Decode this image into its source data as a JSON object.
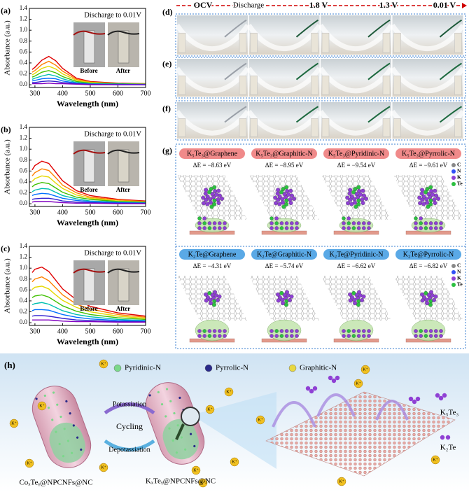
{
  "chart_data": [
    {
      "type": "line",
      "panel_label": "(a)",
      "annotation": "Discharge to 0.01V",
      "inset_labels": [
        "Before",
        "After"
      ],
      "xlabel": "Wavelength (nm)",
      "ylabel": "Absorbance (a.u.)",
      "x": [
        290,
        300,
        325,
        350,
        375,
        400,
        450,
        500,
        600,
        700
      ],
      "xlim": [
        280,
        700
      ],
      "ylim": [
        -0.05,
        1.4
      ],
      "xticks": [
        300,
        400,
        500,
        600,
        700
      ],
      "yticks": [
        {
          "value": 0,
          "label": "0.0"
        },
        {
          "value": 0.2,
          "label": "0.2"
        },
        {
          "value": 0.4,
          "label": "0.4"
        },
        {
          "value": 0.6,
          "label": "0.6"
        },
        {
          "value": 0.8,
          "label": "0.8"
        },
        {
          "value": 1,
          "label": "1.0"
        },
        {
          "value": 1.2,
          "label": "1.2"
        },
        {
          "value": 1.4,
          "label": "1.4"
        }
      ],
      "series": [
        {
          "color": "#e00000",
          "values": [
            0.28,
            0.32,
            0.45,
            0.52,
            0.44,
            0.3,
            0.12,
            0.06,
            0.03,
            0.02
          ]
        },
        {
          "color": "#ff8000",
          "values": [
            0.23,
            0.26,
            0.37,
            0.43,
            0.36,
            0.25,
            0.1,
            0.05,
            0.02,
            0.02
          ]
        },
        {
          "color": "#e6d800",
          "values": [
            0.18,
            0.21,
            0.3,
            0.34,
            0.29,
            0.2,
            0.08,
            0.04,
            0.02,
            0.01
          ]
        },
        {
          "color": "#40c000",
          "values": [
            0.14,
            0.16,
            0.23,
            0.26,
            0.22,
            0.15,
            0.06,
            0.03,
            0.02,
            0.01
          ]
        },
        {
          "color": "#00c0b0",
          "values": [
            0.1,
            0.12,
            0.16,
            0.19,
            0.16,
            0.11,
            0.04,
            0.02,
            0.01,
            0.01
          ]
        },
        {
          "color": "#0070ff",
          "values": [
            0.07,
            0.08,
            0.11,
            0.12,
            0.11,
            0.07,
            0.03,
            0.01,
            0.01,
            0.0
          ]
        },
        {
          "color": "#3020d0",
          "values": [
            0.04,
            0.04,
            0.06,
            0.07,
            0.06,
            0.04,
            0.02,
            0.01,
            0.0,
            0.0
          ]
        },
        {
          "color": "#8000c0",
          "values": [
            0.02,
            0.02,
            0.02,
            0.03,
            0.02,
            0.02,
            0.01,
            0.0,
            0.0,
            0.0
          ]
        }
      ]
    },
    {
      "type": "line",
      "panel_label": "(b)",
      "annotation": "Discharge to 0.01V",
      "inset_labels": [
        "Before",
        "After"
      ],
      "xlabel": "Wavelength (nm)",
      "ylabel": "Absorbance (a.u.)",
      "x": [
        290,
        300,
        325,
        350,
        375,
        400,
        450,
        500,
        600,
        700
      ],
      "xlim": [
        280,
        700
      ],
      "ylim": [
        -0.05,
        1.4
      ],
      "xticks": [
        300,
        400,
        500,
        600,
        700
      ],
      "yticks": [
        {
          "value": 0,
          "label": "0.0"
        },
        {
          "value": 0.2,
          "label": "0.2"
        },
        {
          "value": 0.4,
          "label": "0.4"
        },
        {
          "value": 0.6,
          "label": "0.6"
        },
        {
          "value": 0.8,
          "label": "0.8"
        },
        {
          "value": 1,
          "label": "1.0"
        },
        {
          "value": 1.2,
          "label": "1.2"
        },
        {
          "value": 1.4,
          "label": "1.4"
        }
      ],
      "series": [
        {
          "color": "#e00000",
          "values": [
            0.62,
            0.7,
            0.78,
            0.74,
            0.58,
            0.42,
            0.24,
            0.15,
            0.08,
            0.05
          ]
        },
        {
          "color": "#ff8000",
          "values": [
            0.51,
            0.57,
            0.64,
            0.61,
            0.48,
            0.34,
            0.2,
            0.12,
            0.07,
            0.04
          ]
        },
        {
          "color": "#e6d800",
          "values": [
            0.41,
            0.46,
            0.51,
            0.49,
            0.38,
            0.28,
            0.16,
            0.1,
            0.05,
            0.03
          ]
        },
        {
          "color": "#40c000",
          "values": [
            0.31,
            0.35,
            0.39,
            0.37,
            0.29,
            0.21,
            0.12,
            0.08,
            0.04,
            0.03
          ]
        },
        {
          "color": "#00c0b0",
          "values": [
            0.22,
            0.25,
            0.28,
            0.27,
            0.21,
            0.15,
            0.09,
            0.05,
            0.03,
            0.02
          ]
        },
        {
          "color": "#0070ff",
          "values": [
            0.15,
            0.17,
            0.19,
            0.18,
            0.14,
            0.1,
            0.06,
            0.04,
            0.02,
            0.01
          ]
        },
        {
          "color": "#3020d0",
          "values": [
            0.08,
            0.09,
            0.1,
            0.1,
            0.08,
            0.05,
            0.03,
            0.02,
            0.01,
            0.01
          ]
        },
        {
          "color": "#8000c0",
          "values": [
            0.03,
            0.04,
            0.04,
            0.04,
            0.03,
            0.02,
            0.01,
            0.01,
            0.0,
            0.0
          ]
        }
      ]
    },
    {
      "type": "line",
      "panel_label": "(c)",
      "annotation": "Discharge to 0.01V",
      "inset_labels": [
        "Before",
        "After"
      ],
      "xlabel": "Wavelength (nm)",
      "ylabel": "Absorbance (a.u.)",
      "x": [
        290,
        300,
        325,
        350,
        375,
        400,
        450,
        500,
        600,
        700
      ],
      "xlim": [
        280,
        700
      ],
      "ylim": [
        -0.05,
        1.4
      ],
      "xticks": [
        300,
        400,
        500,
        600,
        700
      ],
      "yticks": [
        {
          "value": 0,
          "label": "0.0"
        },
        {
          "value": 0.2,
          "label": "0.2"
        },
        {
          "value": 0.4,
          "label": "0.4"
        },
        {
          "value": 0.6,
          "label": "0.6"
        },
        {
          "value": 0.8,
          "label": "0.8"
        },
        {
          "value": 1,
          "label": "1.0"
        },
        {
          "value": 1.2,
          "label": "1.2"
        },
        {
          "value": 1.4,
          "label": "1.4"
        }
      ],
      "series": [
        {
          "color": "#e00000",
          "values": [
            0.92,
            0.98,
            1.02,
            0.94,
            0.78,
            0.62,
            0.42,
            0.3,
            0.18,
            0.12
          ]
        },
        {
          "color": "#ff8000",
          "values": [
            0.75,
            0.8,
            0.84,
            0.77,
            0.64,
            0.51,
            0.34,
            0.25,
            0.15,
            0.1
          ]
        },
        {
          "color": "#e6d800",
          "values": [
            0.61,
            0.65,
            0.67,
            0.62,
            0.51,
            0.41,
            0.28,
            0.2,
            0.12,
            0.08
          ]
        },
        {
          "color": "#40c000",
          "values": [
            0.46,
            0.49,
            0.51,
            0.47,
            0.39,
            0.31,
            0.21,
            0.15,
            0.09,
            0.06
          ]
        },
        {
          "color": "#00c0b0",
          "values": [
            0.33,
            0.35,
            0.37,
            0.34,
            0.28,
            0.22,
            0.15,
            0.11,
            0.06,
            0.04
          ]
        },
        {
          "color": "#0070ff",
          "values": [
            0.22,
            0.24,
            0.24,
            0.23,
            0.19,
            0.15,
            0.1,
            0.07,
            0.04,
            0.03
          ]
        },
        {
          "color": "#3020d0",
          "values": [
            0.12,
            0.13,
            0.13,
            0.12,
            0.1,
            0.08,
            0.05,
            0.04,
            0.02,
            0.02
          ]
        },
        {
          "color": "#8000c0",
          "values": [
            0.05,
            0.05,
            0.05,
            0.05,
            0.04,
            0.03,
            0.02,
            0.02,
            0.01,
            0.01
          ]
        }
      ]
    }
  ],
  "panel_d": {
    "label": "(d)",
    "header": [
      "OCV",
      "Discharge",
      "1.8 V",
      "1.3 V",
      "0.01 V"
    ]
  },
  "panel_e": {
    "label": "(e)"
  },
  "panel_f": {
    "label": "(f)"
  },
  "panel_g": {
    "label": "(g)",
    "legend": [
      "C",
      "N",
      "K",
      "Te"
    ],
    "rows": [
      {
        "structures": [
          {
            "name": "K₅Te₃@Graphene",
            "energy": "ΔE = −8.63 eV"
          },
          {
            "name": "K₅Te₃@Graphitic-N",
            "energy": "ΔE = −8.95 eV"
          },
          {
            "name": "K₅Te₃@Pyridinic-N",
            "energy": "ΔE = −9.54 eV"
          },
          {
            "name": "K₅Te₃@Pyrrolic-N",
            "energy": "ΔE = −9.61 eV"
          }
        ]
      },
      {
        "structures": [
          {
            "name": "K₂Te@Graphene",
            "energy": "ΔE = −4.31 eV"
          },
          {
            "name": "K₂Te@Graphitic-N",
            "energy": "ΔE = −5.74 eV"
          },
          {
            "name": "K₂Te@Pyridinic-N",
            "energy": "ΔE = −6.62 eV"
          },
          {
            "name": "K₂Te@Pyrrolic-N",
            "energy": "ΔE = −6.82 eV"
          }
        ]
      }
    ]
  },
  "panel_h": {
    "label": "(h)",
    "legend": [
      "Pyridinic-N",
      "Pyrrolic-N",
      "Graphitic-N"
    ],
    "process": [
      "Potassiation",
      "Cycling",
      "Depotassiation"
    ],
    "precursor": "CoₓTeᵧ@NPCNFs@NC",
    "product": "KₓTeᵧ@NPCNFs@NC",
    "species": [
      "K₅Te₃",
      "K₂Te"
    ],
    "ion": "K⁺"
  }
}
